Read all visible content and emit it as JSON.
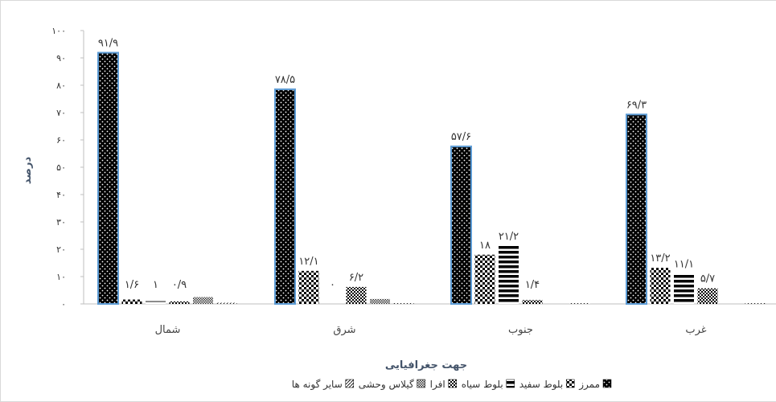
{
  "chart_data": {
    "type": "bar",
    "title": "",
    "xlabel": "جهت جغرافیایی",
    "ylabel": "درصد",
    "ylim": [
      0,
      100
    ],
    "y_ticks": [
      0,
      10,
      20,
      30,
      40,
      50,
      60,
      70,
      80,
      90,
      100
    ],
    "y_tick_labels": [
      "۰",
      "۱۰",
      "۲۰",
      "۳۰",
      "۴۰",
      "۵۰",
      "۶۰",
      "۷۰",
      "۸۰",
      "۹۰",
      "۱۰۰"
    ],
    "grid": false,
    "legend_position": "bottom",
    "categories": [
      "شمال",
      "شرق",
      "جنوب",
      "غرب"
    ],
    "series": [
      {
        "name": "ممرز",
        "values": [
          91.9,
          78.5,
          57.6,
          69.3
        ],
        "labels": [
          "۹۱/۹",
          "۷۸/۵",
          "۵۷/۶",
          "۶۹/۳"
        ],
        "pattern": "dots"
      },
      {
        "name": "بلوط سفید",
        "values": [
          1.6,
          12.1,
          18,
          13.2
        ],
        "labels": [
          "۱/۶",
          "۱۲/۱",
          "۱۸",
          "۱۳/۲"
        ],
        "pattern": "checker"
      },
      {
        "name": "بلوط سیاه",
        "values": [
          1,
          0,
          21.2,
          11.1
        ],
        "labels": [
          "۱",
          "۰",
          "۲۱/۲",
          "۱۱/۱"
        ],
        "pattern": "hlines"
      },
      {
        "name": "افرا",
        "values": [
          0.9,
          6.2,
          1.4,
          5.7
        ],
        "labels": [
          "۰/۹",
          "۶/۲",
          "۱/۴",
          "۵/۷"
        ],
        "pattern": "grid"
      },
      {
        "name": "گیلاس وحشی",
        "values": [
          2.5,
          1.8,
          0,
          0
        ],
        "labels": [
          "",
          "",
          "",
          ""
        ],
        "pattern": "smallcheck"
      },
      {
        "name": "سایر گونه ها",
        "values": [
          0.4,
          0.3,
          0.3,
          0.3
        ],
        "labels": [
          "",
          "",
          "",
          ""
        ],
        "pattern": "diag"
      }
    ],
    "colors": {
      "bar_fill": "#000000",
      "bar_outline": "#5b9bd5",
      "pattern_light": "#ffffff",
      "axis_text": "#44546a"
    }
  }
}
